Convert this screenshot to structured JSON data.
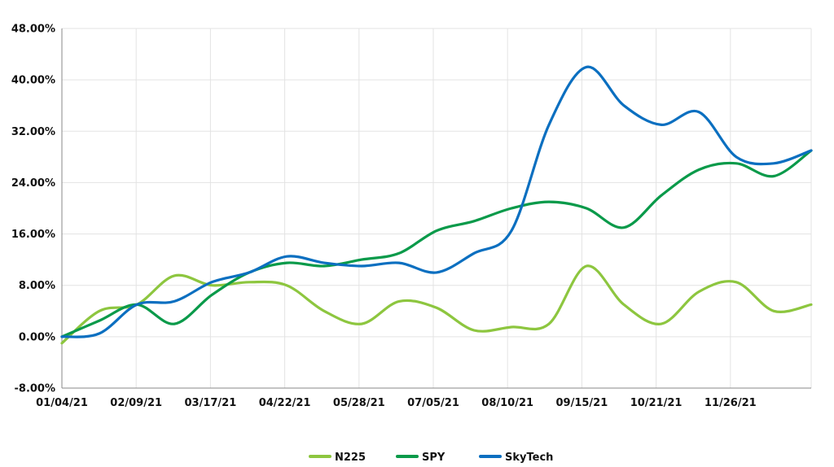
{
  "chart_data": {
    "type": "line",
    "title": "",
    "xlabel": "",
    "ylabel": "",
    "x_ticks": [
      "01/04/21",
      "02/09/21",
      "03/17/21",
      "04/22/21",
      "05/28/21",
      "07/05/21",
      "08/10/21",
      "09/15/21",
      "10/21/21",
      "11/26/21"
    ],
    "y_ticks": [
      "-8.00%",
      "0.00%",
      "8.00%",
      "16.00%",
      "24.00%",
      "32.00%",
      "40.00%",
      "48.00%"
    ],
    "y_tick_values": [
      -8,
      0,
      8,
      16,
      24,
      32,
      40,
      48
    ],
    "ylim": [
      -8,
      48
    ],
    "y_unit": "%",
    "grid": true,
    "legend_position": "bottom-center",
    "x": [
      "01/04/21",
      "01/20/21",
      "02/09/21",
      "02/25/21",
      "03/17/21",
      "04/05/21",
      "04/22/21",
      "05/10/21",
      "05/28/21",
      "06/15/21",
      "07/05/21",
      "07/22/21",
      "08/10/21",
      "08/26/21",
      "09/15/21",
      "10/01/21",
      "10/21/21",
      "11/08/21",
      "11/26/21",
      "12/14/21",
      "12/30/21"
    ],
    "series": [
      {
        "name": "N225",
        "color": "#8dc63f",
        "values": [
          -1.0,
          4.0,
          5.0,
          9.5,
          8.0,
          8.5,
          8.0,
          4.0,
          2.0,
          5.5,
          4.5,
          1.0,
          1.5,
          2.0,
          11.0,
          5.0,
          2.0,
          7.0,
          8.5,
          4.0,
          5.0
        ]
      },
      {
        "name": "SPY",
        "color": "#0a9a4a",
        "values": [
          0.0,
          2.5,
          5.0,
          2.0,
          6.5,
          10.0,
          11.5,
          11.0,
          12.0,
          13.0,
          16.5,
          18.0,
          20.0,
          21.0,
          20.0,
          17.0,
          22.0,
          26.0,
          27.0,
          25.0,
          29.0
        ]
      },
      {
        "name": "SkyTech",
        "color": "#0b6fc0",
        "values": [
          0.0,
          0.5,
          5.0,
          5.5,
          8.5,
          10.0,
          12.5,
          11.5,
          11.0,
          11.5,
          10.0,
          13.0,
          16.5,
          33.0,
          42.0,
          36.0,
          33.0,
          35.0,
          28.0,
          27.0,
          29.0
        ]
      }
    ]
  }
}
